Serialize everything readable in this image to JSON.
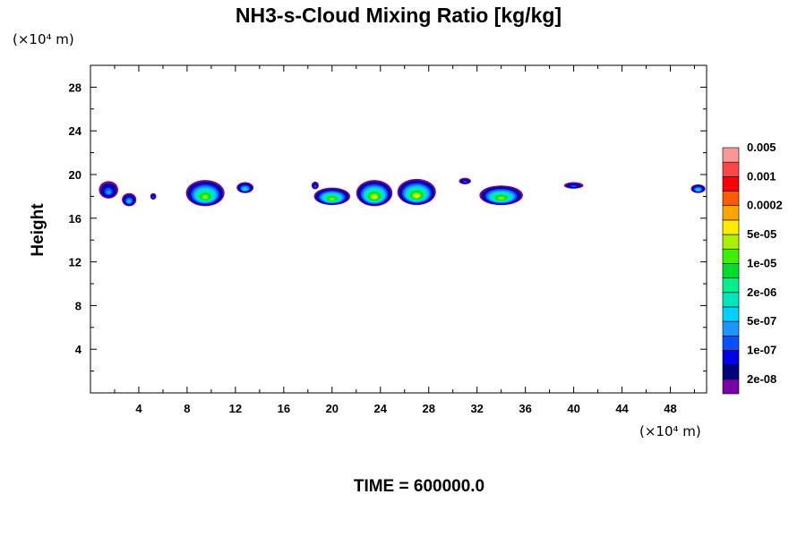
{
  "chart_data": {
    "type": "heatmap",
    "title": "NH3-s-Cloud Mixing Ratio [kg/kg]",
    "xlabel": "",
    "ylabel": "Height",
    "x_unit": "(×10⁴ m)",
    "y_unit": "(×10⁴ m)",
    "xlim": [
      0,
      51
    ],
    "ylim": [
      0,
      30
    ],
    "xticks": [
      "4",
      "8",
      "12",
      "16",
      "20",
      "24",
      "28",
      "32",
      "36",
      "40",
      "44",
      "48"
    ],
    "yticks": [
      "4",
      "8",
      "12",
      "16",
      "20",
      "24",
      "28"
    ],
    "xtick_values": [
      4,
      8,
      12,
      16,
      20,
      24,
      28,
      32,
      36,
      40,
      44,
      48
    ],
    "ytick_values": [
      4,
      8,
      12,
      16,
      20,
      24,
      28
    ],
    "colorbar": {
      "colors": [
        "#7b00a8",
        "#00007d",
        "#0000e6",
        "#0a50ff",
        "#1e96ff",
        "#00d2ff",
        "#00e6be",
        "#00f08c",
        "#00dc28",
        "#3cf000",
        "#aaf000",
        "#ffeb00",
        "#ffa500",
        "#ff5a00",
        "#ff0000",
        "#ff4646",
        "#ff9696"
      ],
      "labels": [
        "2e-08",
        "1e-07",
        "5e-07",
        "2e-06",
        "1e-05",
        "5e-05",
        "0.0002",
        "0.001",
        "0.005"
      ]
    },
    "clouds": [
      {
        "x": 1.5,
        "y": 18.6,
        "w": 1.6,
        "h": 1.6,
        "level": 4
      },
      {
        "x": 3.2,
        "y": 17.7,
        "w": 1.2,
        "h": 1.2,
        "level": 5
      },
      {
        "x": 5.2,
        "y": 18.0,
        "w": 0.5,
        "h": 0.6,
        "level": 3
      },
      {
        "x": 9.5,
        "y": 18.3,
        "w": 3.2,
        "h": 2.4,
        "level": 10
      },
      {
        "x": 12.8,
        "y": 18.8,
        "w": 1.4,
        "h": 1.0,
        "level": 6
      },
      {
        "x": 18.6,
        "y": 19.0,
        "w": 0.6,
        "h": 0.7,
        "level": 3
      },
      {
        "x": 20.0,
        "y": 18.0,
        "w": 3.0,
        "h": 1.6,
        "level": 10
      },
      {
        "x": 23.5,
        "y": 18.3,
        "w": 3.0,
        "h": 2.4,
        "level": 11
      },
      {
        "x": 27.0,
        "y": 18.4,
        "w": 3.2,
        "h": 2.4,
        "level": 11
      },
      {
        "x": 31.0,
        "y": 19.4,
        "w": 1.0,
        "h": 0.6,
        "level": 3
      },
      {
        "x": 34.0,
        "y": 18.1,
        "w": 3.6,
        "h": 1.8,
        "level": 10
      },
      {
        "x": 40.0,
        "y": 19.0,
        "w": 1.6,
        "h": 0.6,
        "level": 3
      },
      {
        "x": 50.3,
        "y": 18.7,
        "w": 1.2,
        "h": 0.8,
        "level": 6
      }
    ]
  },
  "footer": {
    "time_text": "TIME = 600000.0"
  }
}
